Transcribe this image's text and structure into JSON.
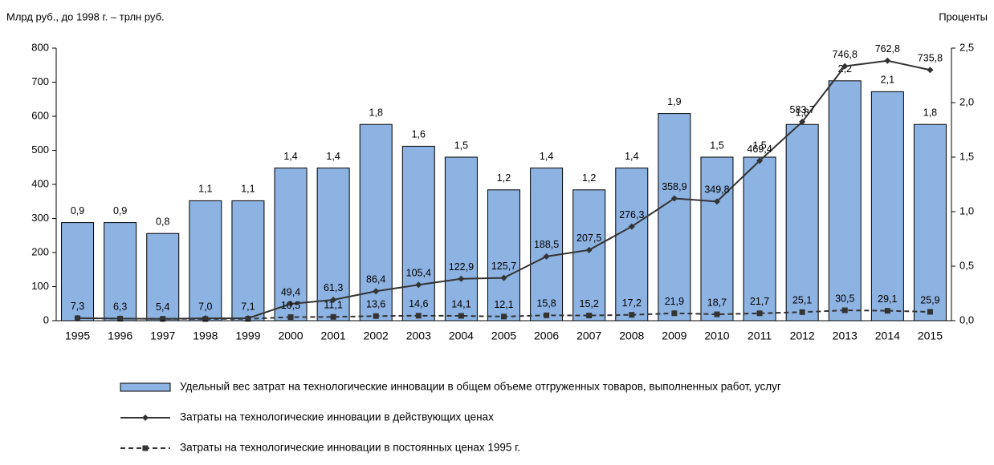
{
  "chart_data": {
    "type": "combo",
    "y_label": "Млрд руб.,  до 1998 г. – трлн руб.",
    "y2_label": "Проценты",
    "categories": [
      "1995",
      "1996",
      "1997",
      "1998",
      "1999",
      "2000",
      "2001",
      "2002",
      "2003",
      "2004",
      "2005",
      "2006",
      "2007",
      "2008",
      "2009",
      "2010",
      "2011",
      "2012",
      "2013",
      "2014",
      "2015"
    ],
    "ylim": [
      0,
      800
    ],
    "yticks": [
      0,
      100,
      200,
      300,
      400,
      500,
      600,
      700,
      800
    ],
    "y2lim": [
      0,
      2.5
    ],
    "y2ticks": [
      {
        "value": 0,
        "label": "0,0"
      },
      {
        "value": 0.5,
        "label": "0,5"
      },
      {
        "value": 1,
        "label": "1,0"
      },
      {
        "value": 1.5,
        "label": "1,5"
      },
      {
        "value": 2,
        "label": "2,0"
      },
      {
        "value": 2.5,
        "label": "2,5"
      }
    ],
    "series": [
      {
        "name": "Удельный вес затрат на технологические инновации в общем объеме отгруженных товаров, выполненных работ, услуг",
        "type": "bar",
        "axis": "y2",
        "color": "#8db3e2",
        "values": [
          0.9,
          0.9,
          0.8,
          1.1,
          1.1,
          1.4,
          1.4,
          1.8,
          1.6,
          1.5,
          1.2,
          1.4,
          1.2,
          1.4,
          1.9,
          1.5,
          1.5,
          1.8,
          2.2,
          2.1,
          1.8
        ],
        "value_labels": [
          "0,9",
          "0,9",
          "0,8",
          "1,1",
          "1,1",
          "1,4",
          "1,4",
          "1,8",
          "1,6",
          "1,5",
          "1,2",
          "1,4",
          "1,2",
          "1,4",
          "1,9",
          "1,5",
          "1,5",
          "1,8",
          "2,2",
          "2,1",
          "1,8"
        ]
      },
      {
        "name": "Затраты на технологические инновации в действующих ценах",
        "type": "line",
        "color": "#333333",
        "marker": "diamond",
        "values": [
          7.3,
          6.3,
          5.4,
          7.0,
          7.1,
          49.4,
          61.3,
          86.4,
          105.4,
          122.9,
          125.7,
          188.5,
          207.5,
          276.3,
          358.9,
          349.8,
          469.4,
          583.7,
          746.8,
          762.8,
          735.8
        ],
        "value_labels": [
          "7,3",
          "6,3",
          "5,4",
          "7,0",
          "7,1",
          "49,4",
          "61,3",
          "86,4",
          "105,4",
          "122,9",
          "125,7",
          "188,5",
          "207,5",
          "276,3",
          "358,9",
          "349,8",
          "469,4",
          "583,7",
          "746,8",
          "762,8",
          "735,8"
        ]
      },
      {
        "name": "Затраты на технологические инновации в постоянных ценах 1995 г.",
        "type": "line",
        "color": "#333333",
        "marker": "square",
        "dashed": true,
        "values": [
          7.3,
          6.0,
          5.5,
          5.0,
          5.5,
          10.5,
          11.1,
          13.6,
          14.6,
          14.1,
          12.1,
          15.8,
          15.2,
          17.2,
          21.9,
          18.7,
          21.7,
          25.1,
          30.5,
          29.1,
          25.9
        ],
        "value_labels": [
          null,
          null,
          null,
          null,
          null,
          "10,5",
          "11,1",
          "13,6",
          "14,6",
          "14,1",
          "12,1",
          "15,8",
          "15,2",
          "17,2",
          "21,9",
          "18,7",
          "21,7",
          "25,1",
          "30,5",
          "29,1",
          "25,9"
        ]
      }
    ]
  }
}
